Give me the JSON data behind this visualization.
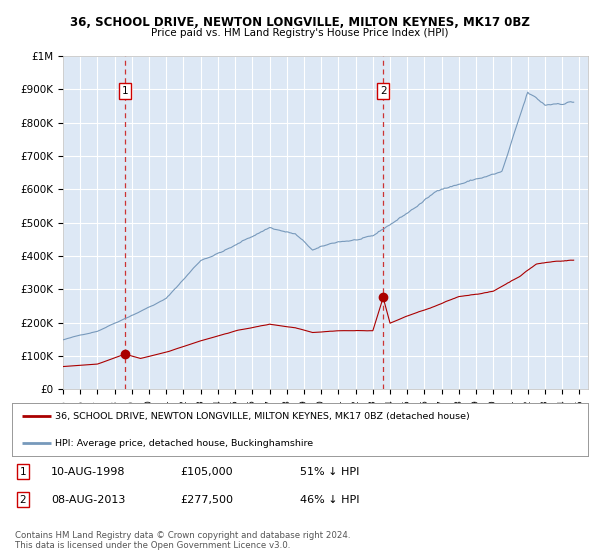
{
  "title": "36, SCHOOL DRIVE, NEWTON LONGVILLE, MILTON KEYNES, MK17 0BZ",
  "subtitle": "Price paid vs. HM Land Registry's House Price Index (HPI)",
  "legend_line1": "36, SCHOOL DRIVE, NEWTON LONGVILLE, MILTON KEYNES, MK17 0BZ (detached house)",
  "legend_line2": "HPI: Average price, detached house, Buckinghamshire",
  "footnote": "Contains HM Land Registry data © Crown copyright and database right 2024.\nThis data is licensed under the Open Government Licence v3.0.",
  "annotation1": {
    "label": "1",
    "date": "10-AUG-1998",
    "price": "£105,000",
    "pct": "51% ↓ HPI"
  },
  "annotation2": {
    "label": "2",
    "date": "08-AUG-2013",
    "price": "£277,500",
    "pct": "46% ↓ HPI"
  },
  "red_line_color": "#aa0000",
  "blue_line_color": "#7799bb",
  "background_color": "#dde8f5",
  "grid_color": "#ffffff",
  "annotation_vline_color": "#cc3333",
  "ylim": [
    0,
    1000000
  ],
  "yticks": [
    0,
    100000,
    200000,
    300000,
    400000,
    500000,
    600000,
    700000,
    800000,
    900000,
    1000000
  ],
  "ytick_labels": [
    "£0",
    "£100K",
    "£200K",
    "£300K",
    "£400K",
    "£500K",
    "£600K",
    "£700K",
    "£800K",
    "£900K",
    "£1M"
  ],
  "xlim_start": 1995.0,
  "xlim_end": 2025.5,
  "xticks": [
    1995,
    1996,
    1997,
    1998,
    1999,
    2000,
    2001,
    2002,
    2003,
    2004,
    2005,
    2006,
    2007,
    2008,
    2009,
    2010,
    2011,
    2012,
    2013,
    2014,
    2015,
    2016,
    2017,
    2018,
    2019,
    2020,
    2021,
    2022,
    2023,
    2024,
    2025
  ],
  "ann1_x": 1998.6,
  "ann1_y": 105000,
  "ann2_x": 2013.6,
  "ann2_y": 277500
}
